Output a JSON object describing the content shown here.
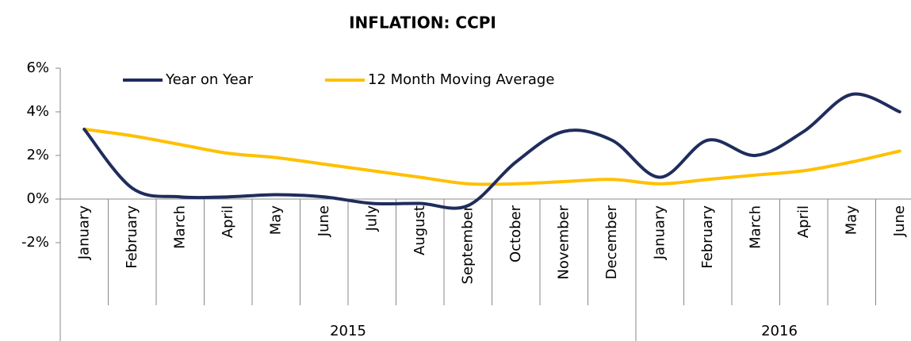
{
  "chart_data": {
    "type": "line",
    "title": "INFLATION: CCPI",
    "categories": [
      "January",
      "February",
      "March",
      "April",
      "May",
      "June",
      "July",
      "August",
      "September",
      "October",
      "November",
      "December",
      "January",
      "February",
      "March",
      "April",
      "May",
      "June"
    ],
    "category_groups": [
      {
        "label": "2015",
        "size": 12
      },
      {
        "label": "2016",
        "size": 6
      }
    ],
    "series": [
      {
        "name": "Year on Year",
        "color": "#1f2d5c",
        "values": [
          3.2,
          0.5,
          0.1,
          0.1,
          0.2,
          0.1,
          -0.2,
          -0.2,
          -0.3,
          1.7,
          3.1,
          2.7,
          1.0,
          2.7,
          2.0,
          3.1,
          4.8,
          4.0
        ]
      },
      {
        "name": "12 Month Moving Average",
        "color": "#ffc000",
        "values": [
          3.2,
          2.9,
          2.5,
          2.1,
          1.9,
          1.6,
          1.3,
          1.0,
          0.7,
          0.7,
          0.8,
          0.9,
          0.7,
          0.9,
          1.1,
          1.3,
          1.7,
          2.2
        ]
      }
    ],
    "ylim": [
      -2,
      6
    ],
    "yticks": [
      {
        "value": -2,
        "label": "-2%"
      },
      {
        "value": 0,
        "label": "0%"
      },
      {
        "value": 2,
        "label": "2%"
      },
      {
        "value": 4,
        "label": "4%"
      },
      {
        "value": 6,
        "label": "6%"
      }
    ],
    "grid": false,
    "legend": "top"
  }
}
